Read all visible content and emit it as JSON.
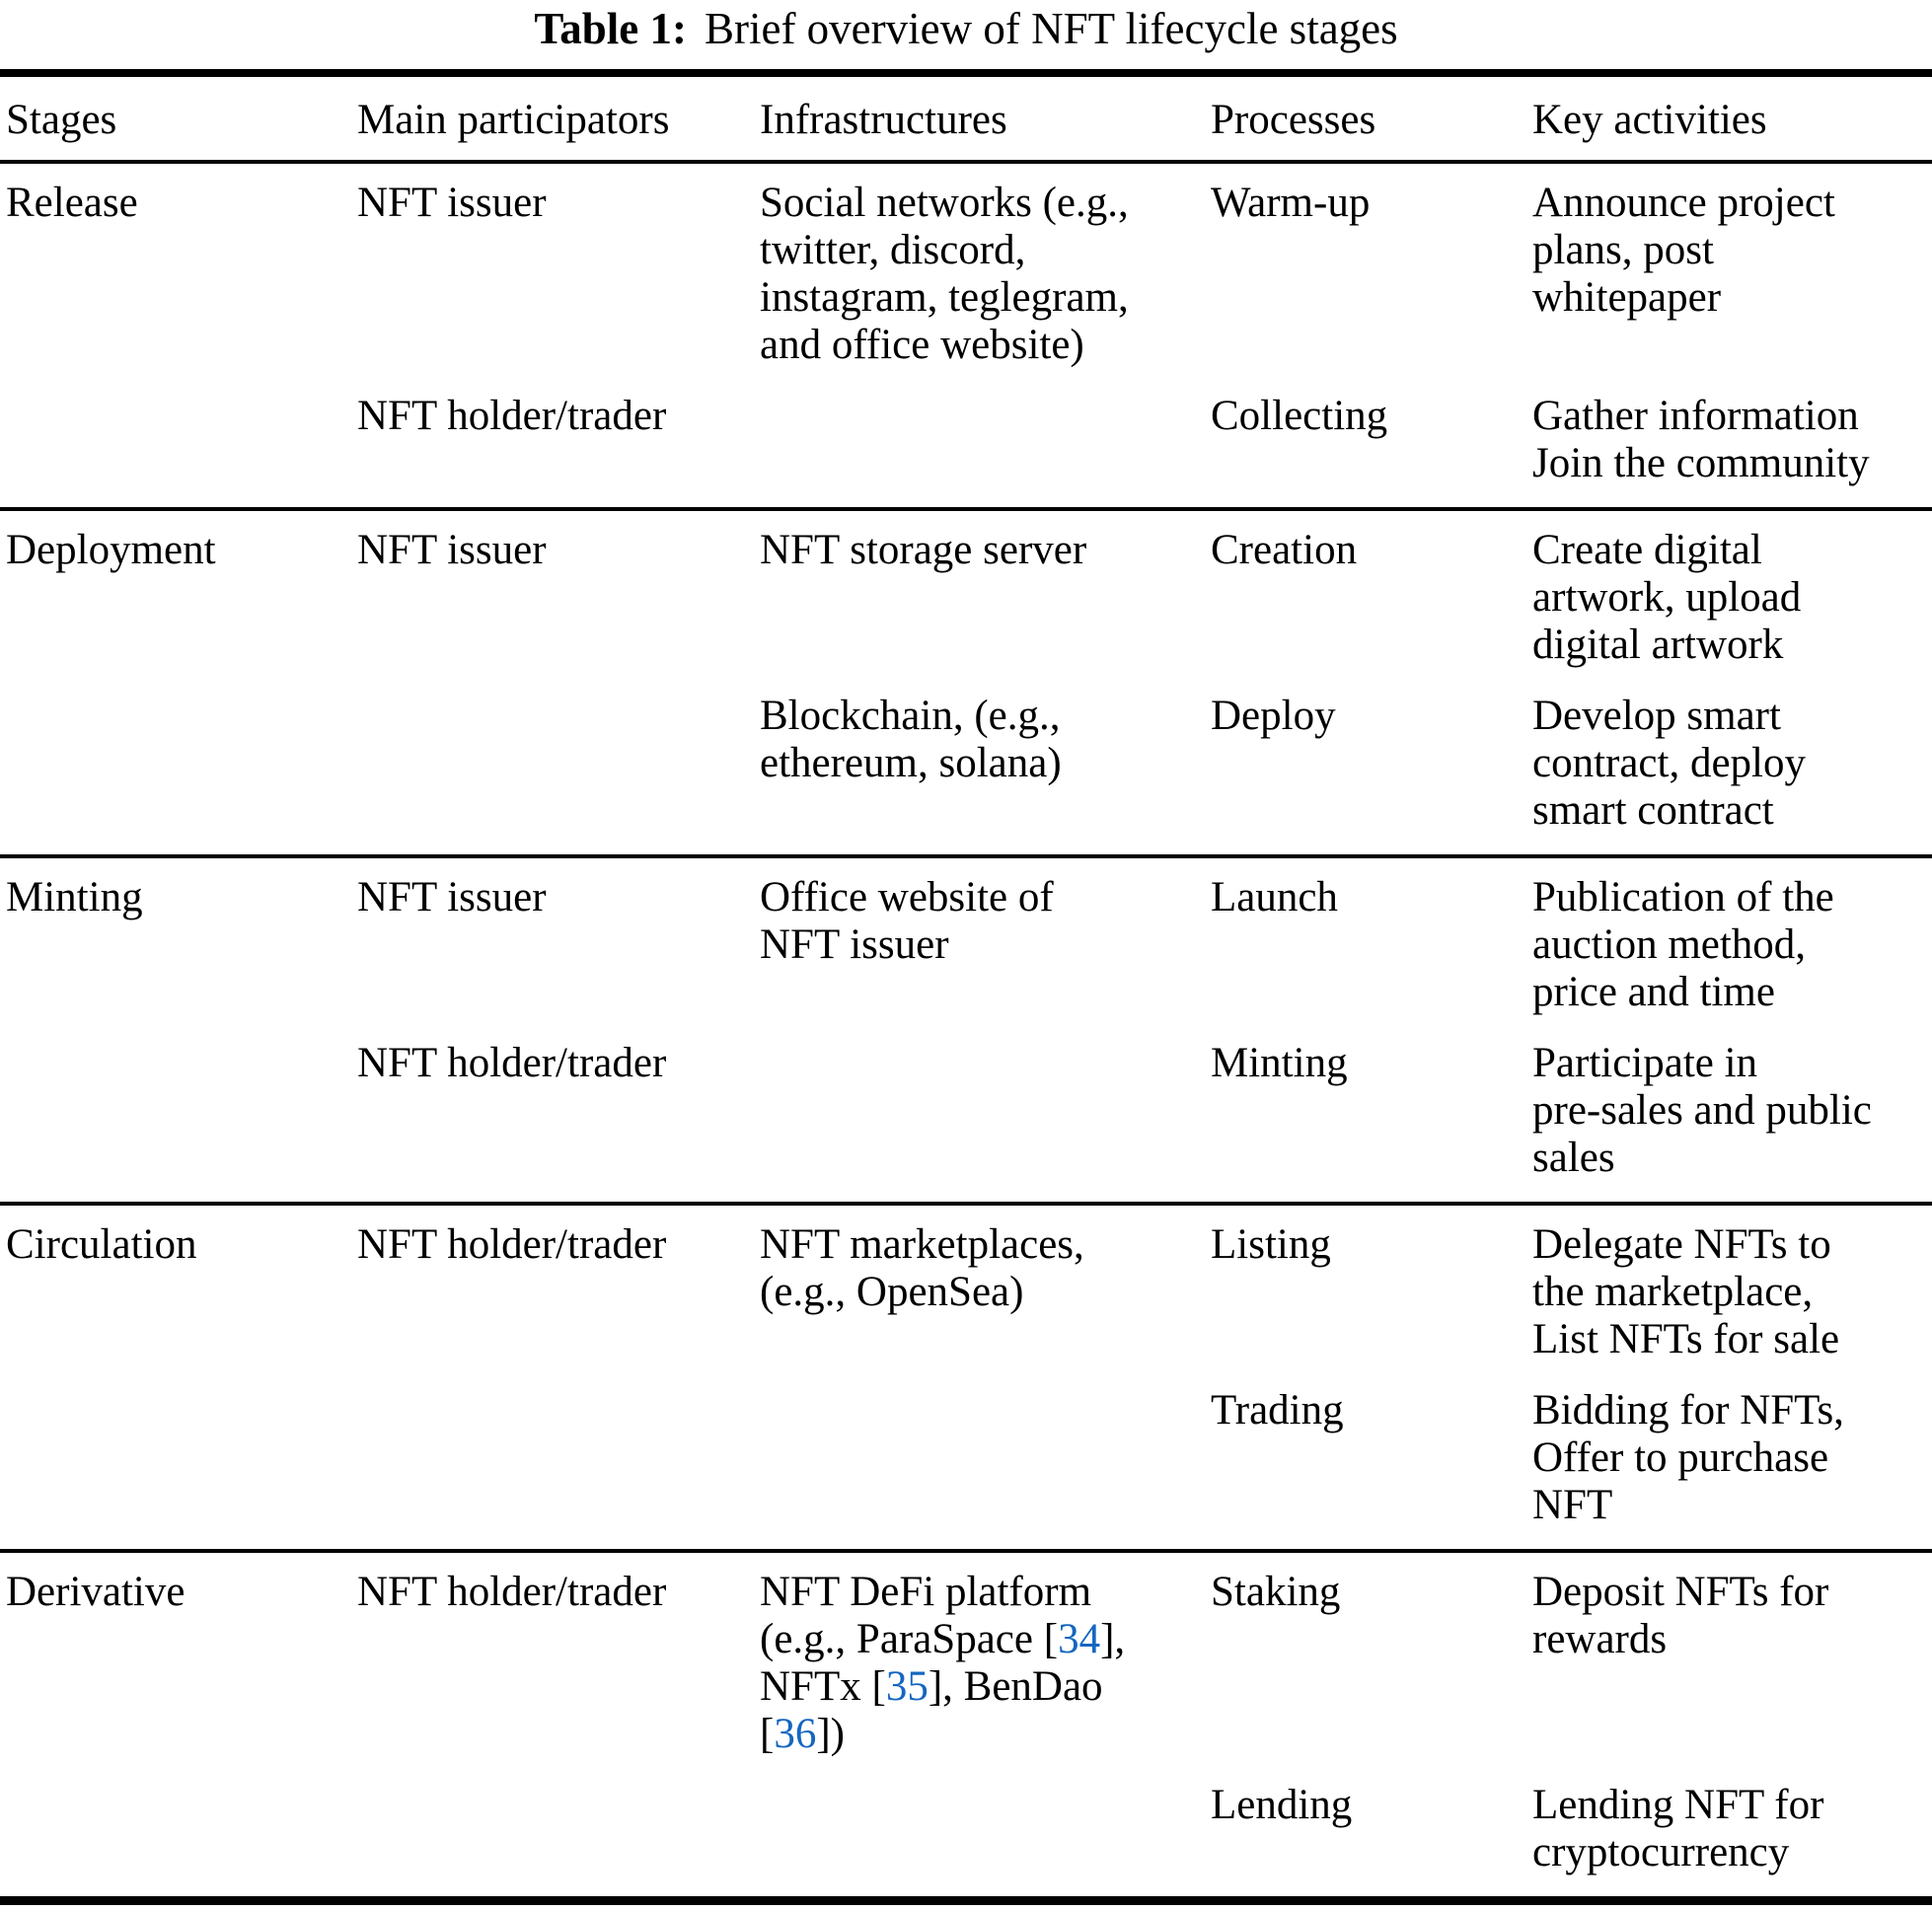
{
  "title": {
    "label": "Table 1:",
    "text": "Brief overview of NFT lifecycle stages"
  },
  "colors": {
    "text": "#000000",
    "rule": "#000000",
    "citation_link": "#1566c0"
  },
  "header": {
    "columns": [
      "Stages",
      "Main participators",
      "Infrastructures",
      "Processes",
      "Key activities"
    ]
  },
  "groups": [
    {
      "stage": "Release",
      "rows": [
        {
          "participant": "NFT issuer",
          "infrastructure": "Social networks (e.g.,\ntwitter, discord,\ninstagram, teglegram,\nand office website)",
          "process": "Warm-up",
          "activity": "Announce project\nplans, post\nwhitepaper"
        },
        {
          "participant": "NFT holder/trader",
          "infrastructure": "",
          "process": "Collecting",
          "activity": "Gather information\nJoin the community"
        }
      ]
    },
    {
      "stage": "Deployment",
      "rows": [
        {
          "participant": "NFT issuer",
          "infrastructure": "NFT storage server",
          "process": "Creation",
          "activity": "Create digital\nartwork, upload\ndigital artwork"
        },
        {
          "participant": "",
          "infrastructure": "Blockchain, (e.g.,\nethereum, solana)",
          "process": "Deploy",
          "activity": "Develop smart\ncontract, deploy\nsmart contract"
        }
      ]
    },
    {
      "stage": "Minting",
      "rows": [
        {
          "participant": "NFT issuer",
          "infrastructure": "Office website of\nNFT issuer",
          "process": "Launch",
          "activity": "Publication of the\nauction method,\nprice and time"
        },
        {
          "participant": "NFT holder/trader",
          "infrastructure": "",
          "process": "Minting",
          "activity": "Participate in\npre-sales and public\nsales"
        }
      ]
    },
    {
      "stage": "Circulation",
      "rows": [
        {
          "participant": "NFT holder/trader",
          "infrastructure": "NFT marketplaces,\n(e.g., OpenSea)",
          "process": "Listing",
          "activity": "Delegate NFTs to\nthe marketplace,\nList NFTs for sale"
        },
        {
          "participant": "",
          "infrastructure": "",
          "process": "Trading",
          "activity": "Bidding for NFTs,\nOffer to purchase\nNFT"
        }
      ]
    },
    {
      "stage": "Derivative",
      "rows": [
        {
          "participant": "NFT holder/trader",
          "infrastructure_parts": [
            "NFT DeFi platform\n(e.g., ParaSpace [",
            "34",
            "],\nNFTx [",
            "35",
            "], BenDao\n[",
            "36",
            "])"
          ],
          "process": "Staking",
          "activity": "Deposit NFTs for\nrewards"
        },
        {
          "participant": "",
          "infrastructure": "",
          "process": "Lending",
          "activity": "Lending NFT for\ncryptocurrency"
        }
      ]
    }
  ]
}
